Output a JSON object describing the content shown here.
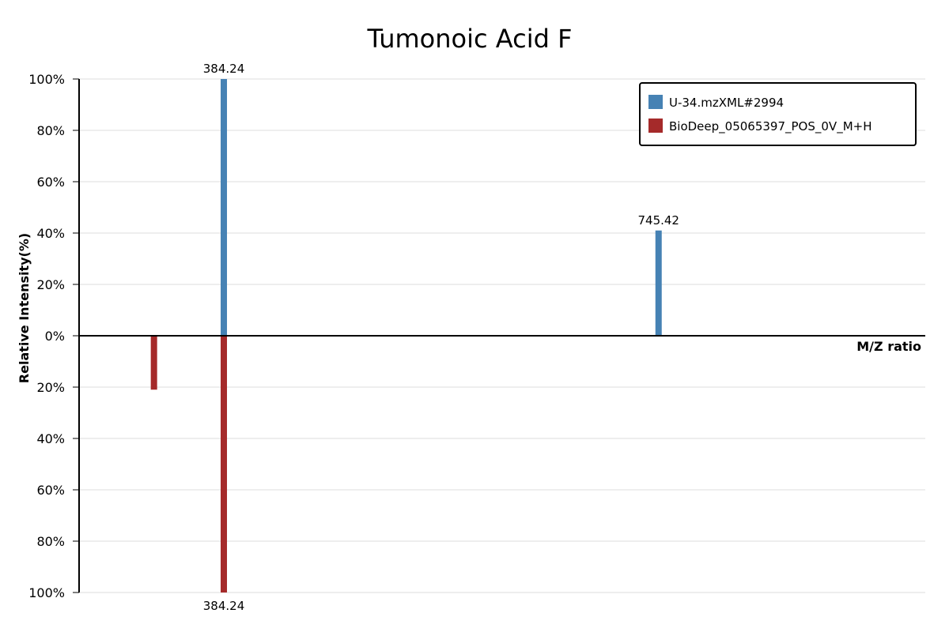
{
  "chart_data": {
    "type": "bar",
    "title": "Tumonoic Acid F",
    "xlabel": "M/Z ratio",
    "ylabel": "Relative Intensity(%)",
    "ylim": [
      -100,
      100
    ],
    "yticks_upper": [
      "100%",
      "80%",
      "60%",
      "40%",
      "20%",
      "0%"
    ],
    "yticks_lower": [
      "20%",
      "40%",
      "60%",
      "80%",
      "100%"
    ],
    "grid": true,
    "legend_position": "top-right",
    "series": [
      {
        "name": "U-34.mzXML#2994",
        "color": "#4682b4",
        "direction": "up",
        "peaks": [
          {
            "mz": 384.24,
            "intensity": 100,
            "label": "384.24"
          },
          {
            "mz": 745.42,
            "intensity": 41,
            "label": "745.42"
          }
        ]
      },
      {
        "name": "BioDeep_05065397_POS_0V_M+H",
        "color": "#a52a2a",
        "direction": "down",
        "peaks": [
          {
            "mz": 326.2,
            "intensity": 21,
            "label": ""
          },
          {
            "mz": 384.24,
            "intensity": 100,
            "label": "384.24"
          }
        ]
      }
    ],
    "xlim": [
      264,
      967
    ]
  }
}
